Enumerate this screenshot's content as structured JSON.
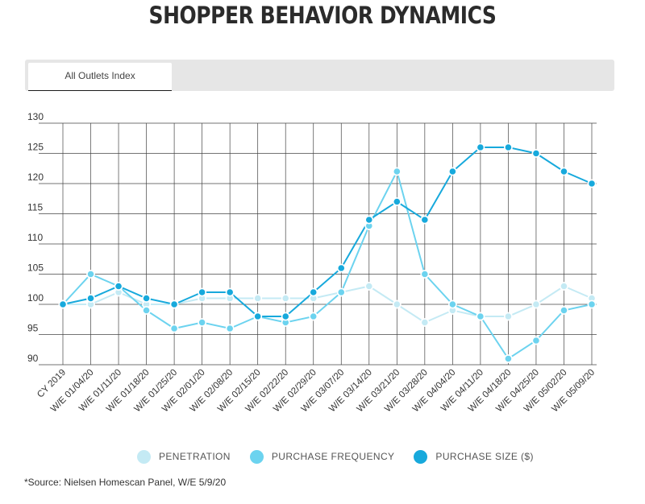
{
  "title": "SHOPPER BEHAVIOR DYNAMICS",
  "tab": {
    "label": "All Outlets Index"
  },
  "source": "*Source: Nielsen Homescan Panel, W/E 5/9/20",
  "chart_data": {
    "type": "line",
    "title": "SHOPPER BEHAVIOR DYNAMICS",
    "xlabel": "",
    "ylabel": "",
    "ylim": [
      90,
      130
    ],
    "yticks": [
      90,
      95,
      100,
      105,
      110,
      115,
      120,
      125,
      130
    ],
    "grid": true,
    "legend_position": "bottom",
    "categories": [
      "CY 2019",
      "W/E 01/04/20",
      "W/E 01/11/20",
      "W/E 01/18/20",
      "W/E 01/25/20",
      "W/E 02/01/20",
      "W/E 02/08/20",
      "W/E 02/15/20",
      "W/E 02/22/20",
      "W/E 02/29/20",
      "W/E 03/07/20",
      "W/E 03/14/20",
      "W/E 03/21/20",
      "W/E 03/28/20",
      "W/E 04/04/20",
      "W/E 04/11/20",
      "W/E 04/18/20",
      "W/E 04/25/20",
      "W/E 05/02/20",
      "W/E 05/09/20"
    ],
    "series": [
      {
        "name": "PENETRATION",
        "color": "#c4eaf4",
        "values": [
          100,
          100,
          102,
          100,
          100,
          101,
          101,
          101,
          101,
          101,
          102,
          103,
          100,
          97,
          99,
          98,
          98,
          100,
          103,
          101
        ]
      },
      {
        "name": "PURCHASE FREQUENCY",
        "color": "#6cd3ef",
        "values": [
          100,
          105,
          103,
          99,
          96,
          97,
          96,
          98,
          97,
          98,
          102,
          113,
          122,
          105,
          100,
          98,
          91,
          94,
          99,
          100
        ]
      },
      {
        "name": "PURCHASE SIZE ($)",
        "color": "#17a9dc",
        "values": [
          100,
          101,
          103,
          101,
          100,
          102,
          102,
          98,
          98,
          102,
          106,
          114,
          117,
          114,
          122,
          126,
          126,
          125,
          122,
          120
        ]
      }
    ]
  }
}
